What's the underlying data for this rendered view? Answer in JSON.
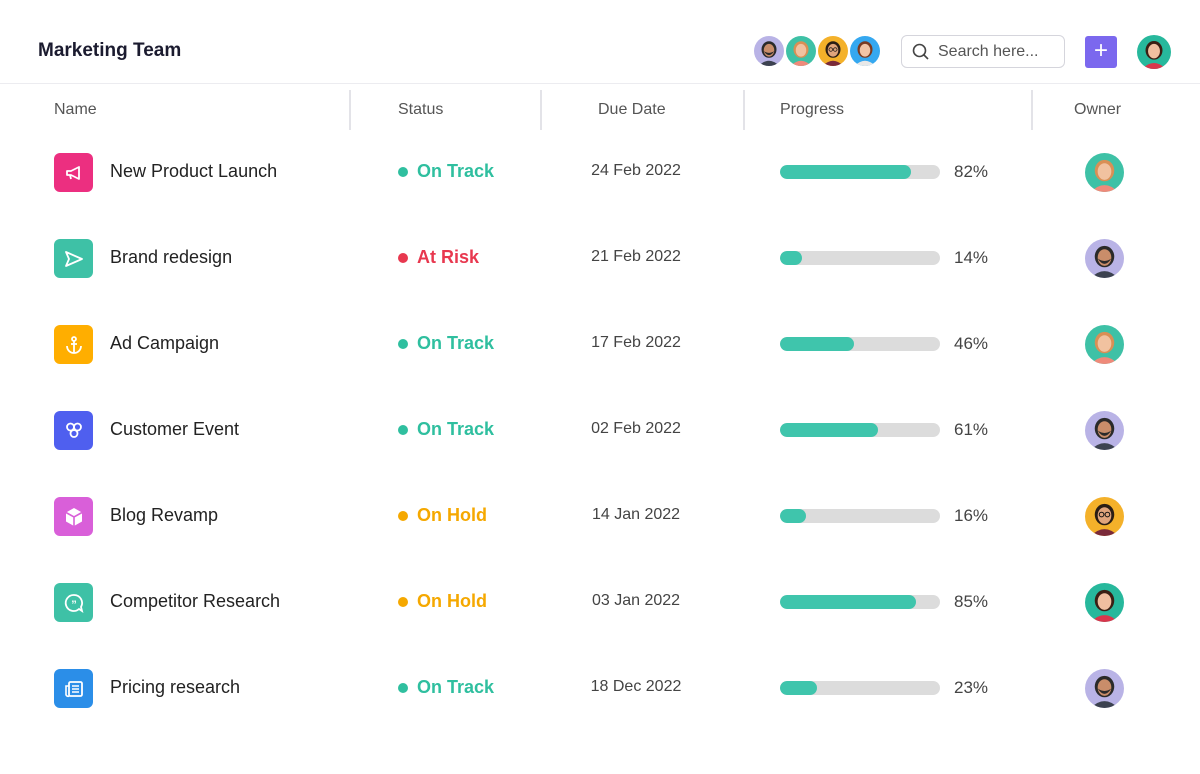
{
  "header": {
    "title": "Marketing Team",
    "search_placeholder": "Search here...",
    "add_label": "+"
  },
  "team_avatars": [
    "man-beard",
    "woman-curly",
    "woman-glasses",
    "woman-bun"
  ],
  "columns": [
    "Name",
    "Status",
    "Due Date",
    "Progress",
    "Owner"
  ],
  "status_colors": {
    "On Track": "#2fbf9f",
    "At Risk": "#e8384f",
    "On Hold": "#f5a800"
  },
  "rows": [
    {
      "name": "New Product Launch",
      "icon": "megaphone-icon",
      "icon_color": "#ec2f80",
      "status": "On Track",
      "due": "24 Feb 2022",
      "progress": 82,
      "progress_label": "82%",
      "owner": "woman-curly"
    },
    {
      "name": "Brand redesign",
      "icon": "send-icon",
      "icon_color": "#3ec1a6",
      "status": "At Risk",
      "due": "21 Feb 2022",
      "progress": 14,
      "progress_label": "14%",
      "owner": "man-beard"
    },
    {
      "name": "Ad Campaign",
      "icon": "anchor-icon",
      "icon_color": "#ffae00",
      "status": "On Track",
      "due": "17 Feb 2022",
      "progress": 46,
      "progress_label": "46%",
      "owner": "woman-curly"
    },
    {
      "name": "Customer Event",
      "icon": "hexagons-icon",
      "icon_color": "#4f5fef",
      "status": "On Track",
      "due": "02 Feb 2022",
      "progress": 61,
      "progress_label": "61%",
      "owner": "man-beard"
    },
    {
      "name": "Blog Revamp",
      "icon": "cube-icon",
      "icon_color": "#d95fd9",
      "status": "On Hold",
      "due": "14 Jan 2022",
      "progress": 16,
      "progress_label": "16%",
      "owner": "woman-glasses"
    },
    {
      "name": "Competitor Research",
      "icon": "quote-bubble-icon",
      "icon_color": "#3ec1a6",
      "status": "On Hold",
      "due": "03 Jan 2022",
      "progress": 85,
      "progress_label": "85%",
      "owner": "woman-teal"
    },
    {
      "name": "Pricing research",
      "icon": "newspaper-icon",
      "icon_color": "#2b8ee8",
      "status": "On Track",
      "due": "18 Dec 2022",
      "progress": 23,
      "progress_label": "23%",
      "owner": "man-beard"
    }
  ]
}
